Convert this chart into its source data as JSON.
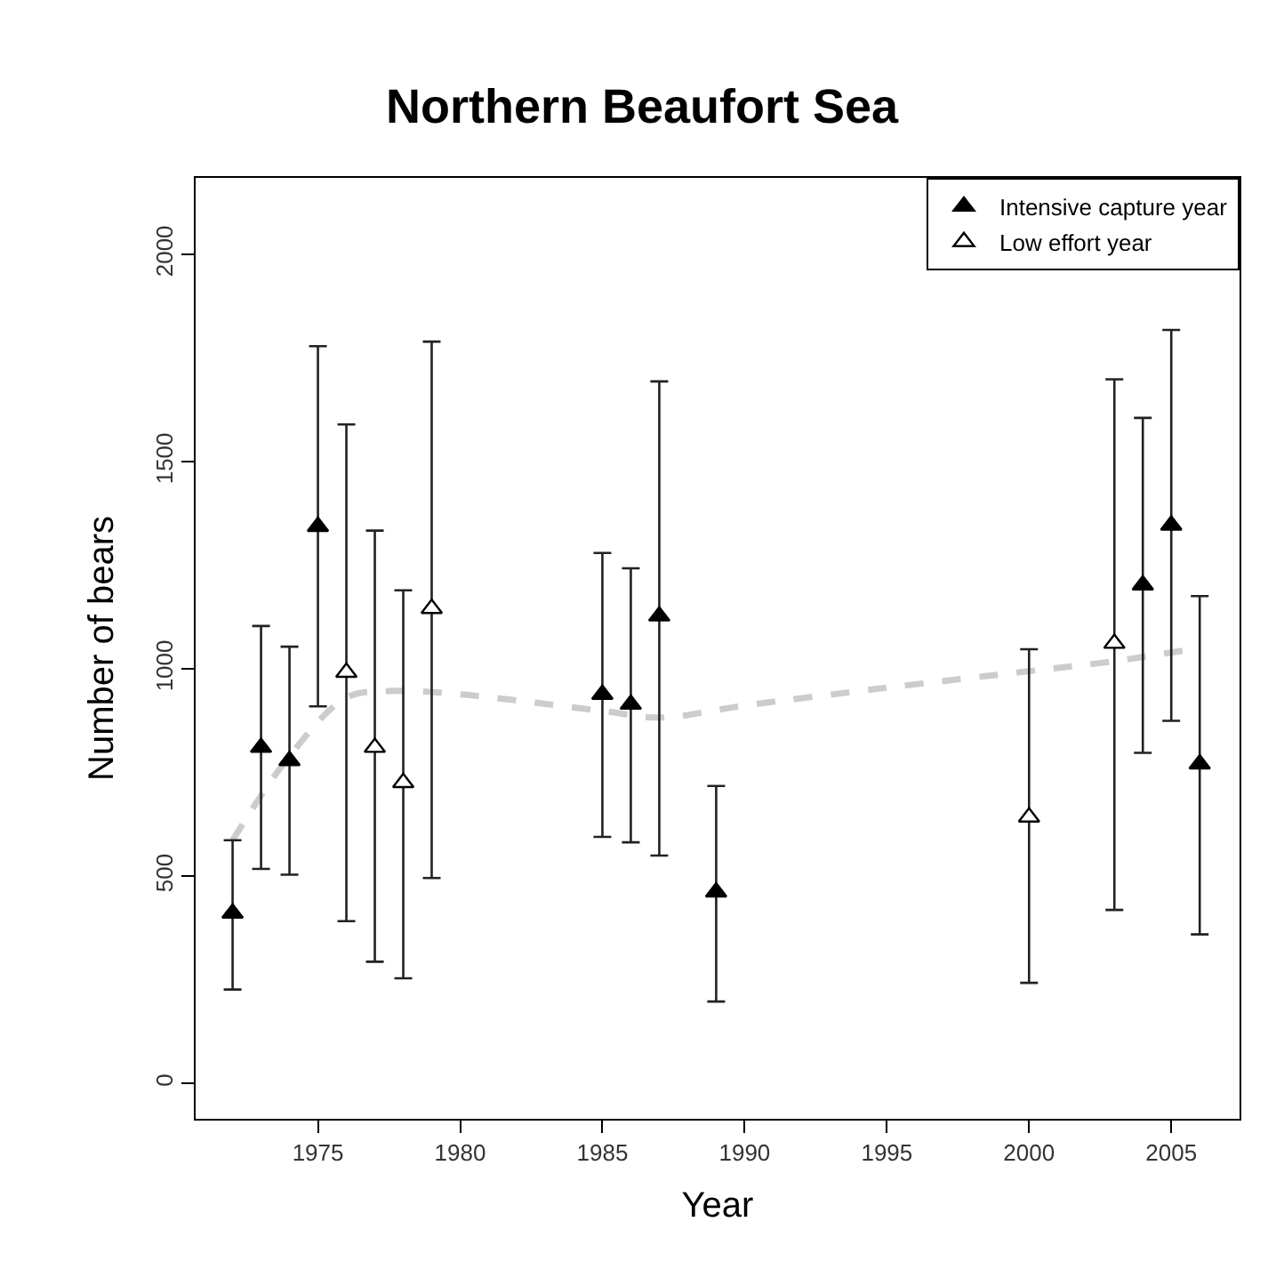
{
  "chart_data": {
    "type": "scatter",
    "title": "Northern Beaufort Sea",
    "xlabel": "Year",
    "ylabel": "Number of bears",
    "xlim": [
      1970.7,
      2007.4
    ],
    "xticks": [
      1975,
      1980,
      1985,
      1990,
      1995,
      2000,
      2005
    ],
    "ylim": [
      -85,
      2185
    ],
    "yticks": [
      0,
      500,
      1000,
      1500,
      2000
    ],
    "legend": "top right",
    "series": [
      {
        "type": "line",
        "color": "#cccccc",
        "line_style": "dashed",
        "marker": "none",
        "x": [
          1972,
          1974,
          1976,
          1977.5,
          1980,
          1985,
          1987,
          1990,
          1995,
          2000,
          2003,
          2006
        ],
        "values": [
          587,
          790,
          931,
          947,
          939,
          899,
          883,
          912,
          955,
          995,
          1019,
          1051
        ]
      },
      {
        "name": "Intensive capture year",
        "color": "#000000",
        "marker": "triangle",
        "x": [
          1972,
          1973,
          1974,
          1975,
          1985,
          1986,
          1987,
          1989,
          2004,
          2005,
          2006
        ],
        "values": [
          411,
          811,
          779,
          1344,
          939,
          915,
          1128,
          462,
          1203,
          1347,
          771
        ],
        "errors": [
          [
            227,
            587
          ],
          [
            518,
            1104
          ],
          [
            504,
            1054
          ],
          [
            910,
            1779
          ],
          [
            595,
            1280
          ],
          [
            582,
            1243
          ],
          [
            550,
            1694
          ],
          [
            198,
            718
          ],
          [
            798,
            1606
          ],
          [
            875,
            1818
          ],
          [
            360,
            1176
          ]
        ]
      },
      {
        "name": "Low effort year",
        "color": "#ffffff",
        "marker": "triangle",
        "x": [
          1976,
          1977,
          1978,
          1979,
          2000,
          2003
        ],
        "values": [
          992,
          811,
          726,
          1146,
          643,
          1062
        ],
        "errors": [
          [
            392,
            1590
          ],
          [
            294,
            1334
          ],
          [
            254,
            1190
          ],
          [
            496,
            1790
          ],
          [
            243,
            1048
          ],
          [
            419,
            1699
          ]
        ]
      }
    ]
  }
}
